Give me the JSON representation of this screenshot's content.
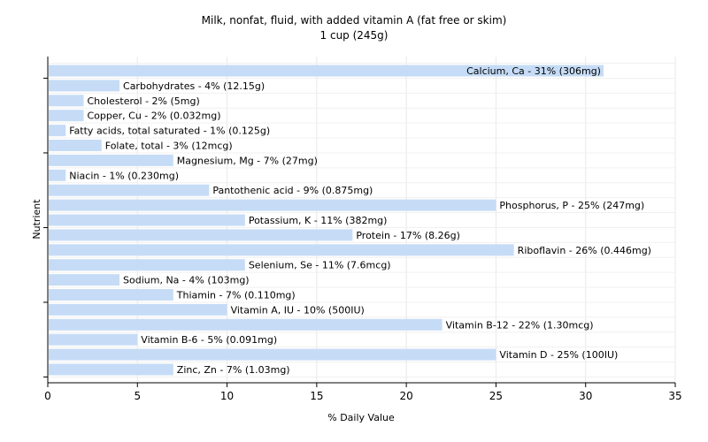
{
  "chart_data": {
    "type": "bar",
    "orientation": "horizontal",
    "title": "Milk, nonfat, fluid, with added vitamin A (fat free or skim)",
    "subtitle": "1 cup (245g)",
    "xlabel": "% Daily Value",
    "ylabel": "Nutrient",
    "xlim": [
      0,
      35
    ],
    "xticks": [
      0,
      5,
      10,
      15,
      20,
      25,
      30,
      35
    ],
    "grid": true,
    "bar_color": "#c6dcf6",
    "categories": [
      "Calcium, Ca",
      "Carbohydrates",
      "Cholesterol",
      "Copper, Cu",
      "Fatty acids, total saturated",
      "Folate, total",
      "Magnesium, Mg",
      "Niacin",
      "Pantothenic acid",
      "Phosphorus, P",
      "Potassium, K",
      "Protein",
      "Riboflavin",
      "Selenium, Se",
      "Sodium, Na",
      "Thiamin",
      "Vitamin A, IU",
      "Vitamin B-12",
      "Vitamin B-6",
      "Vitamin D",
      "Zinc, Zn"
    ],
    "values": [
      31,
      4,
      2,
      2,
      1,
      3,
      7,
      1,
      9,
      25,
      11,
      17,
      26,
      11,
      4,
      7,
      10,
      22,
      5,
      25,
      7
    ],
    "labels": [
      "Calcium, Ca - 31% (306mg)",
      "Carbohydrates - 4% (12.15g)",
      "Cholesterol - 2% (5mg)",
      "Copper, Cu - 2% (0.032mg)",
      "Fatty acids, total saturated - 1% (0.125g)",
      "Folate, total - 3% (12mcg)",
      "Magnesium, Mg - 7% (27mg)",
      "Niacin - 1% (0.230mg)",
      "Pantothenic acid - 9% (0.875mg)",
      "Phosphorus, P - 25% (247mg)",
      "Potassium, K - 11% (382mg)",
      "Protein - 17% (8.26g)",
      "Riboflavin - 26% (0.446mg)",
      "Selenium, Se - 11% (7.6mcg)",
      "Sodium, Na - 4% (103mg)",
      "Thiamin - 7% (0.110mg)",
      "Vitamin A, IU - 10% (500IU)",
      "Vitamin B-12 - 22% (1.30mcg)",
      "Vitamin B-6 - 5% (0.091mg)",
      "Vitamin D - 25% (100IU)",
      "Zinc, Zn - 7% (1.03mg)"
    ]
  }
}
